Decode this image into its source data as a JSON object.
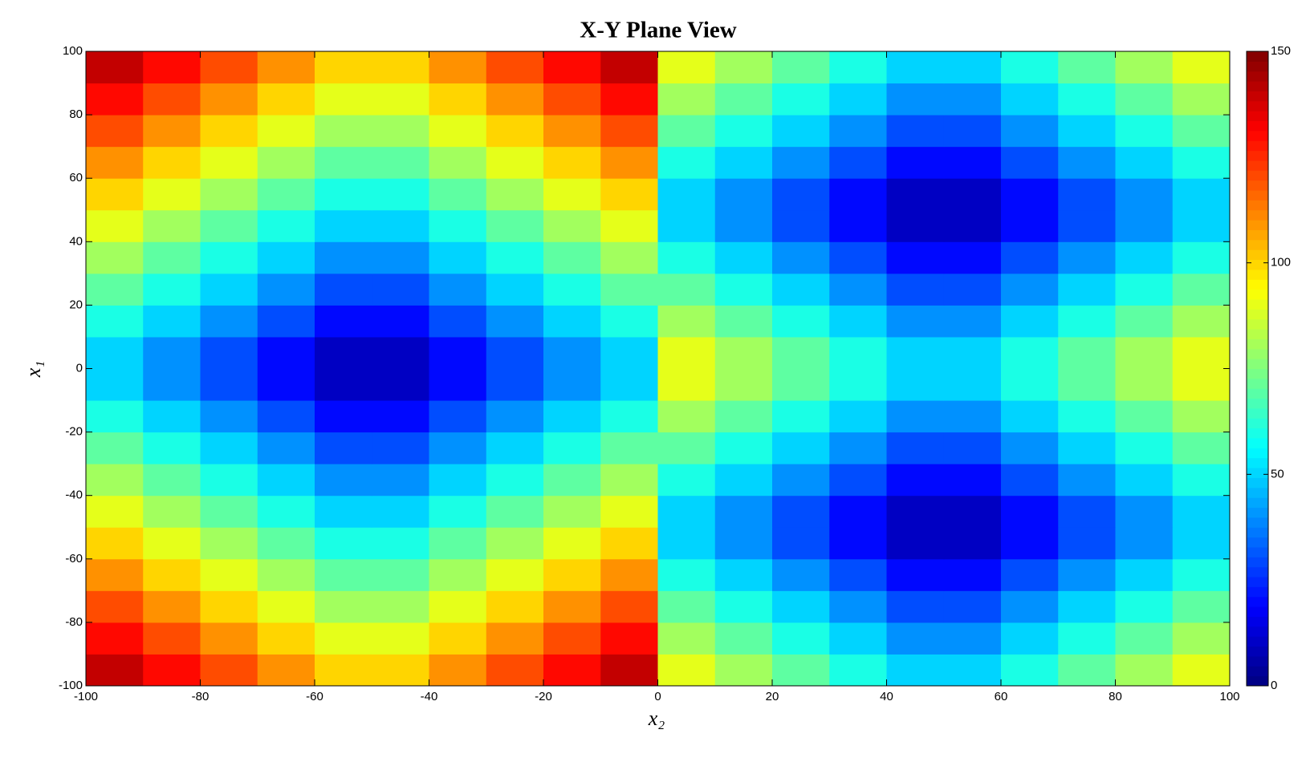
{
  "chart_data": {
    "type": "heatmap",
    "title": "X-Y Plane View",
    "xlabel": "x₂",
    "ylabel": "x₁",
    "x": [
      -95,
      -85,
      -75,
      -65,
      -55,
      -45,
      -35,
      -25,
      -15,
      -5,
      5,
      15,
      25,
      35,
      45,
      55,
      65,
      75,
      85,
      95
    ],
    "y": [
      -95,
      -85,
      -75,
      -65,
      -55,
      -45,
      -35,
      -25,
      -15,
      -5,
      5,
      15,
      25,
      35,
      45,
      55,
      65,
      75,
      85,
      95
    ],
    "z": [
      [
        140,
        130,
        120,
        110,
        100,
        100,
        110,
        120,
        130,
        140,
        90,
        80,
        70,
        60,
        50,
        50,
        60,
        70,
        80,
        90
      ],
      [
        130,
        120,
        110,
        100,
        90,
        90,
        100,
        110,
        120,
        130,
        80,
        70,
        60,
        50,
        40,
        40,
        50,
        60,
        70,
        80
      ],
      [
        120,
        110,
        100,
        90,
        80,
        80,
        90,
        100,
        110,
        120,
        70,
        60,
        50,
        40,
        30,
        30,
        40,
        50,
        60,
        70
      ],
      [
        110,
        100,
        90,
        80,
        70,
        70,
        80,
        90,
        100,
        110,
        60,
        50,
        40,
        30,
        20,
        20,
        30,
        40,
        50,
        60
      ],
      [
        100,
        90,
        80,
        70,
        60,
        60,
        70,
        80,
        90,
        100,
        50,
        40,
        30,
        20,
        10,
        10,
        20,
        30,
        40,
        50
      ],
      [
        90,
        80,
        70,
        60,
        50,
        50,
        60,
        70,
        80,
        90,
        50,
        40,
        30,
        20,
        10,
        10,
        20,
        30,
        40,
        50
      ],
      [
        80,
        70,
        60,
        50,
        40,
        40,
        50,
        60,
        70,
        80,
        60,
        50,
        40,
        30,
        20,
        20,
        30,
        40,
        50,
        60
      ],
      [
        70,
        60,
        50,
        40,
        30,
        30,
        40,
        50,
        60,
        70,
        70,
        60,
        50,
        40,
        30,
        30,
        40,
        50,
        60,
        70
      ],
      [
        60,
        50,
        40,
        30,
        20,
        20,
        30,
        40,
        50,
        60,
        80,
        70,
        60,
        50,
        40,
        40,
        50,
        60,
        70,
        80
      ],
      [
        50,
        40,
        30,
        20,
        10,
        10,
        20,
        30,
        40,
        50,
        90,
        80,
        70,
        60,
        50,
        50,
        60,
        70,
        80,
        90
      ],
      [
        50,
        40,
        30,
        20,
        10,
        10,
        20,
        30,
        40,
        50,
        90,
        80,
        70,
        60,
        50,
        50,
        60,
        70,
        80,
        90
      ],
      [
        60,
        50,
        40,
        30,
        20,
        20,
        30,
        40,
        50,
        60,
        80,
        70,
        60,
        50,
        40,
        40,
        50,
        60,
        70,
        80
      ],
      [
        70,
        60,
        50,
        40,
        30,
        30,
        40,
        50,
        60,
        70,
        70,
        60,
        50,
        40,
        30,
        30,
        40,
        50,
        60,
        70
      ],
      [
        80,
        70,
        60,
        50,
        40,
        40,
        50,
        60,
        70,
        80,
        60,
        50,
        40,
        30,
        20,
        20,
        30,
        40,
        50,
        60
      ],
      [
        90,
        80,
        70,
        60,
        50,
        50,
        60,
        70,
        80,
        90,
        50,
        40,
        30,
        20,
        10,
        10,
        20,
        30,
        40,
        50
      ],
      [
        100,
        90,
        80,
        70,
        60,
        60,
        70,
        80,
        90,
        100,
        50,
        40,
        30,
        20,
        10,
        10,
        20,
        30,
        40,
        50
      ],
      [
        110,
        100,
        90,
        80,
        70,
        70,
        80,
        90,
        100,
        110,
        60,
        50,
        40,
        30,
        20,
        20,
        30,
        40,
        50,
        60
      ],
      [
        120,
        110,
        100,
        90,
        80,
        80,
        90,
        100,
        110,
        120,
        70,
        60,
        50,
        40,
        30,
        30,
        40,
        50,
        60,
        70
      ],
      [
        130,
        120,
        110,
        100,
        90,
        90,
        100,
        110,
        120,
        130,
        80,
        70,
        60,
        50,
        40,
        40,
        50,
        60,
        70,
        80
      ],
      [
        140,
        130,
        120,
        110,
        100,
        100,
        110,
        120,
        130,
        140,
        90,
        80,
        70,
        60,
        50,
        50,
        60,
        70,
        80,
        90
      ]
    ],
    "xlim": [
      -100,
      100
    ],
    "ylim": [
      -100,
      100
    ],
    "xticks": [
      -100,
      -80,
      -60,
      -40,
      -20,
      0,
      20,
      40,
      60,
      80,
      100
    ],
    "yticks": [
      -100,
      -80,
      -60,
      -40,
      -20,
      0,
      20,
      40,
      60,
      80,
      100
    ],
    "colormap": "jet",
    "colorbar": {
      "lim": [
        0,
        150
      ],
      "ticks": [
        0,
        50,
        100,
        150
      ]
    }
  }
}
